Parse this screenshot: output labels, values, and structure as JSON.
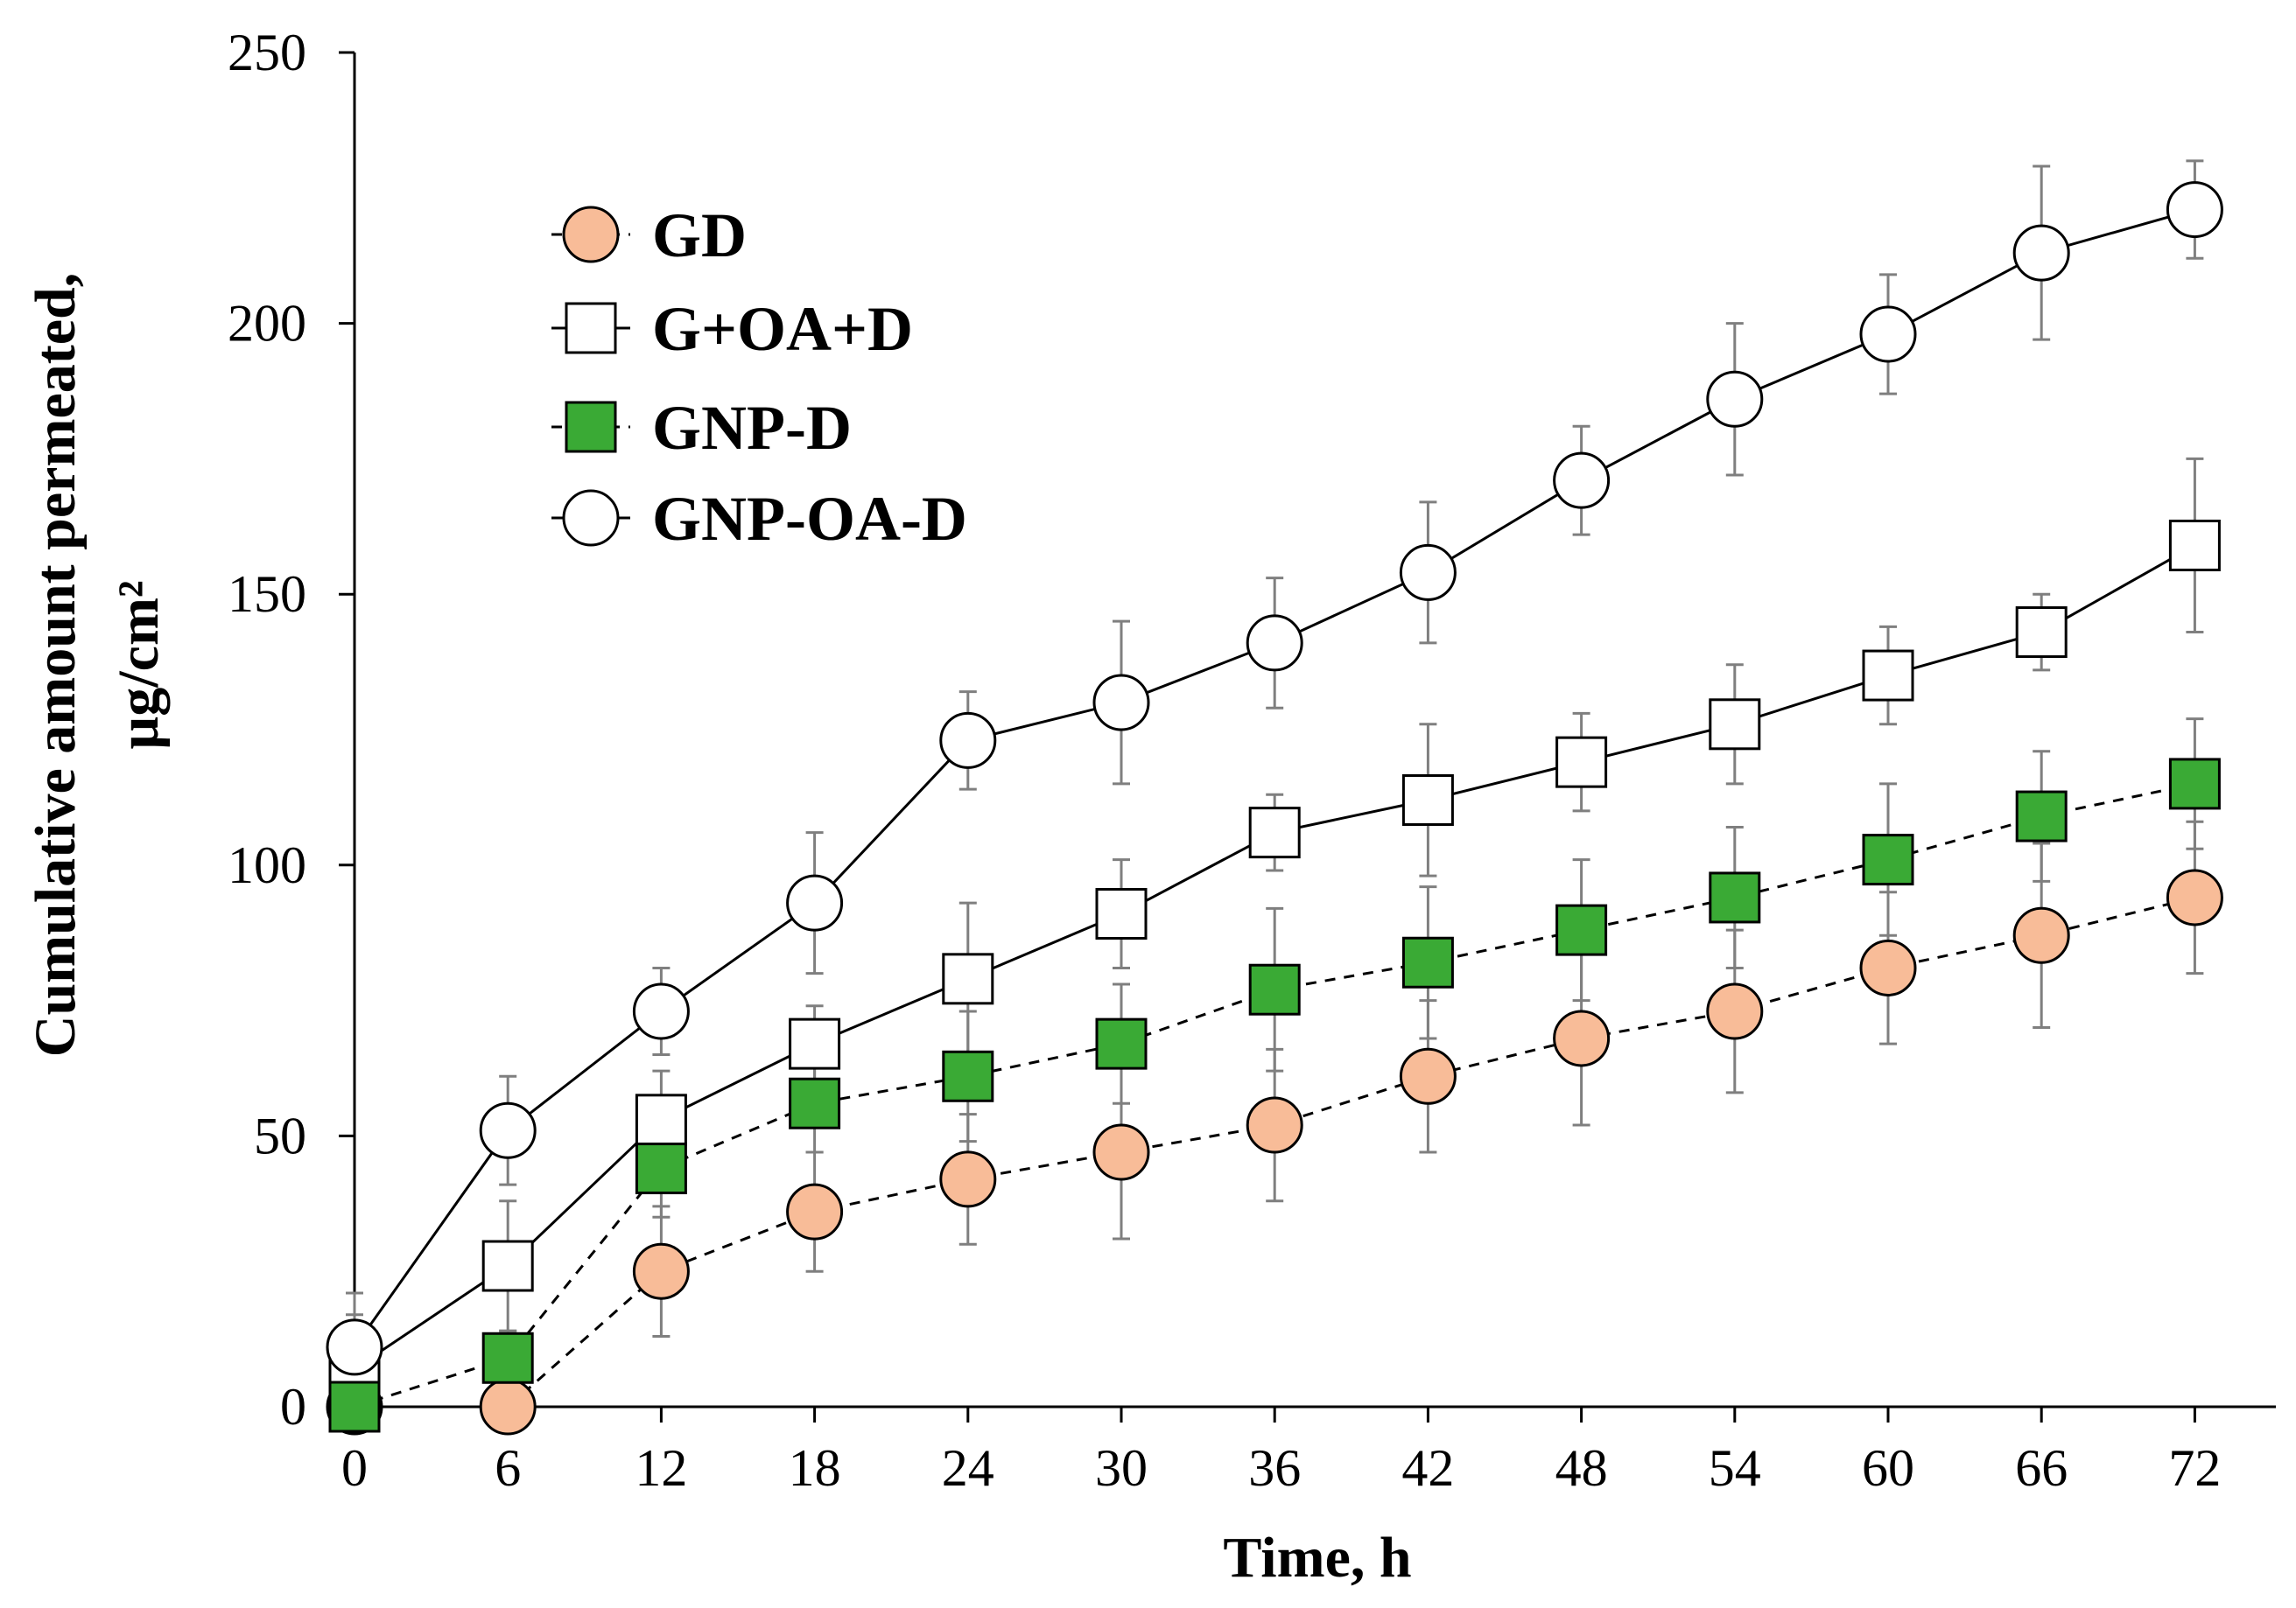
{
  "chart_data": {
    "type": "line",
    "title": "",
    "xlabel": "Time, h",
    "ylabel_line1": "Cumulative amount permeated,",
    "ylabel_line2": "µg/cm²",
    "x": [
      0,
      6,
      12,
      18,
      24,
      30,
      36,
      42,
      48,
      54,
      60,
      66,
      72
    ],
    "x_tick_labels": [
      "0",
      "6",
      "12",
      "18",
      "24",
      "30",
      "36",
      "42",
      "48",
      "54",
      "60",
      "66",
      "72"
    ],
    "y_tick_labels": [
      "0",
      "50",
      "100",
      "150",
      "200",
      "250"
    ],
    "y_ticks": [
      0,
      50,
      100,
      150,
      200,
      250
    ],
    "xlim": [
      0,
      75
    ],
    "ylim": [
      0,
      250
    ],
    "grid": false,
    "legend_position": "top-left",
    "series": [
      {
        "name": "GD",
        "line_style": "dashed",
        "marker": "circle",
        "marker_fill": "#f8bc98",
        "values": [
          0,
          0,
          25,
          36,
          42,
          47,
          52,
          61,
          68,
          73,
          81,
          87,
          94
        ],
        "errors": [
          0,
          0,
          12,
          11,
          12,
          16,
          14,
          14,
          16,
          15,
          14,
          17,
          14
        ]
      },
      {
        "name": "G+OA+D",
        "line_style": "solid",
        "marker": "square",
        "marker_fill": "#ffffff",
        "values": [
          7,
          26,
          53,
          67,
          79,
          91,
          106,
          112,
          119,
          126,
          135,
          143,
          159
        ],
        "errors": [
          10,
          12,
          9,
          7,
          14,
          10,
          7,
          14,
          9,
          11,
          9,
          7,
          16
        ]
      },
      {
        "name": "GNP-D",
        "line_style": "dashed",
        "marker": "square",
        "marker_fill": "#3aaa35",
        "values": [
          0,
          9,
          44,
          56,
          61,
          67,
          77,
          82,
          88,
          94,
          101,
          109,
          115
        ],
        "errors": [
          0,
          5,
          9,
          9,
          12,
          11,
          15,
          14,
          13,
          13,
          14,
          12,
          12
        ]
      },
      {
        "name": "GNP-OA-D",
        "line_style": "solid",
        "marker": "circle",
        "marker_fill": "#ffffff",
        "values": [
          11,
          51,
          73,
          93,
          123,
          130,
          141,
          154,
          171,
          186,
          198,
          213,
          221
        ],
        "errors": [
          10,
          10,
          8,
          13,
          9,
          15,
          12,
          13,
          10,
          14,
          11,
          16,
          9
        ]
      }
    ],
    "colors": {
      "axis": "#000000",
      "line": "#000000",
      "error_bar": "#7f7f7f"
    }
  }
}
